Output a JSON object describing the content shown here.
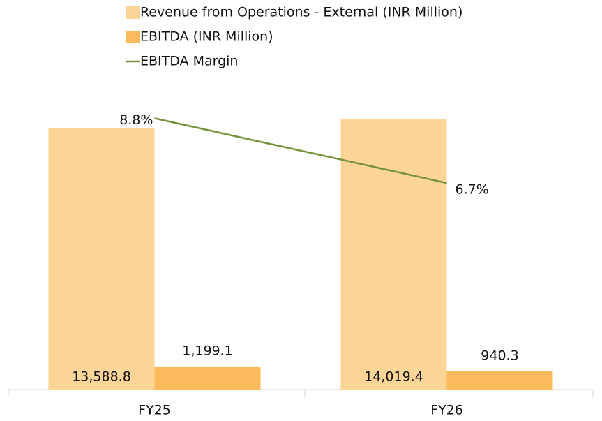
{
  "chart_data": {
    "type": "bar",
    "categories": [
      "FY25",
      "FY26"
    ],
    "series": [
      {
        "name": "Revenue from Operations - External (INR Million)",
        "color": "#fdd597",
        "values": [
          13588.8,
          14019.4
        ],
        "value_labels": [
          "13,588.8",
          "14,019.4"
        ]
      },
      {
        "name": "EBITDA (INR Million)",
        "color": "#fbbb5b",
        "values": [
          1199.1,
          940.3
        ],
        "value_labels": [
          "1,199.1",
          "940.3"
        ]
      },
      {
        "name": "EBITDA Margin",
        "color": "#76923c",
        "type": "line",
        "axis": "y2",
        "values": [
          8.8,
          6.7
        ],
        "value_labels": [
          "8.8%",
          "6.7%"
        ]
      }
    ],
    "ylim": [
      0,
      16000
    ],
    "y2lim": [
      0,
      10
    ],
    "legend": "top"
  }
}
